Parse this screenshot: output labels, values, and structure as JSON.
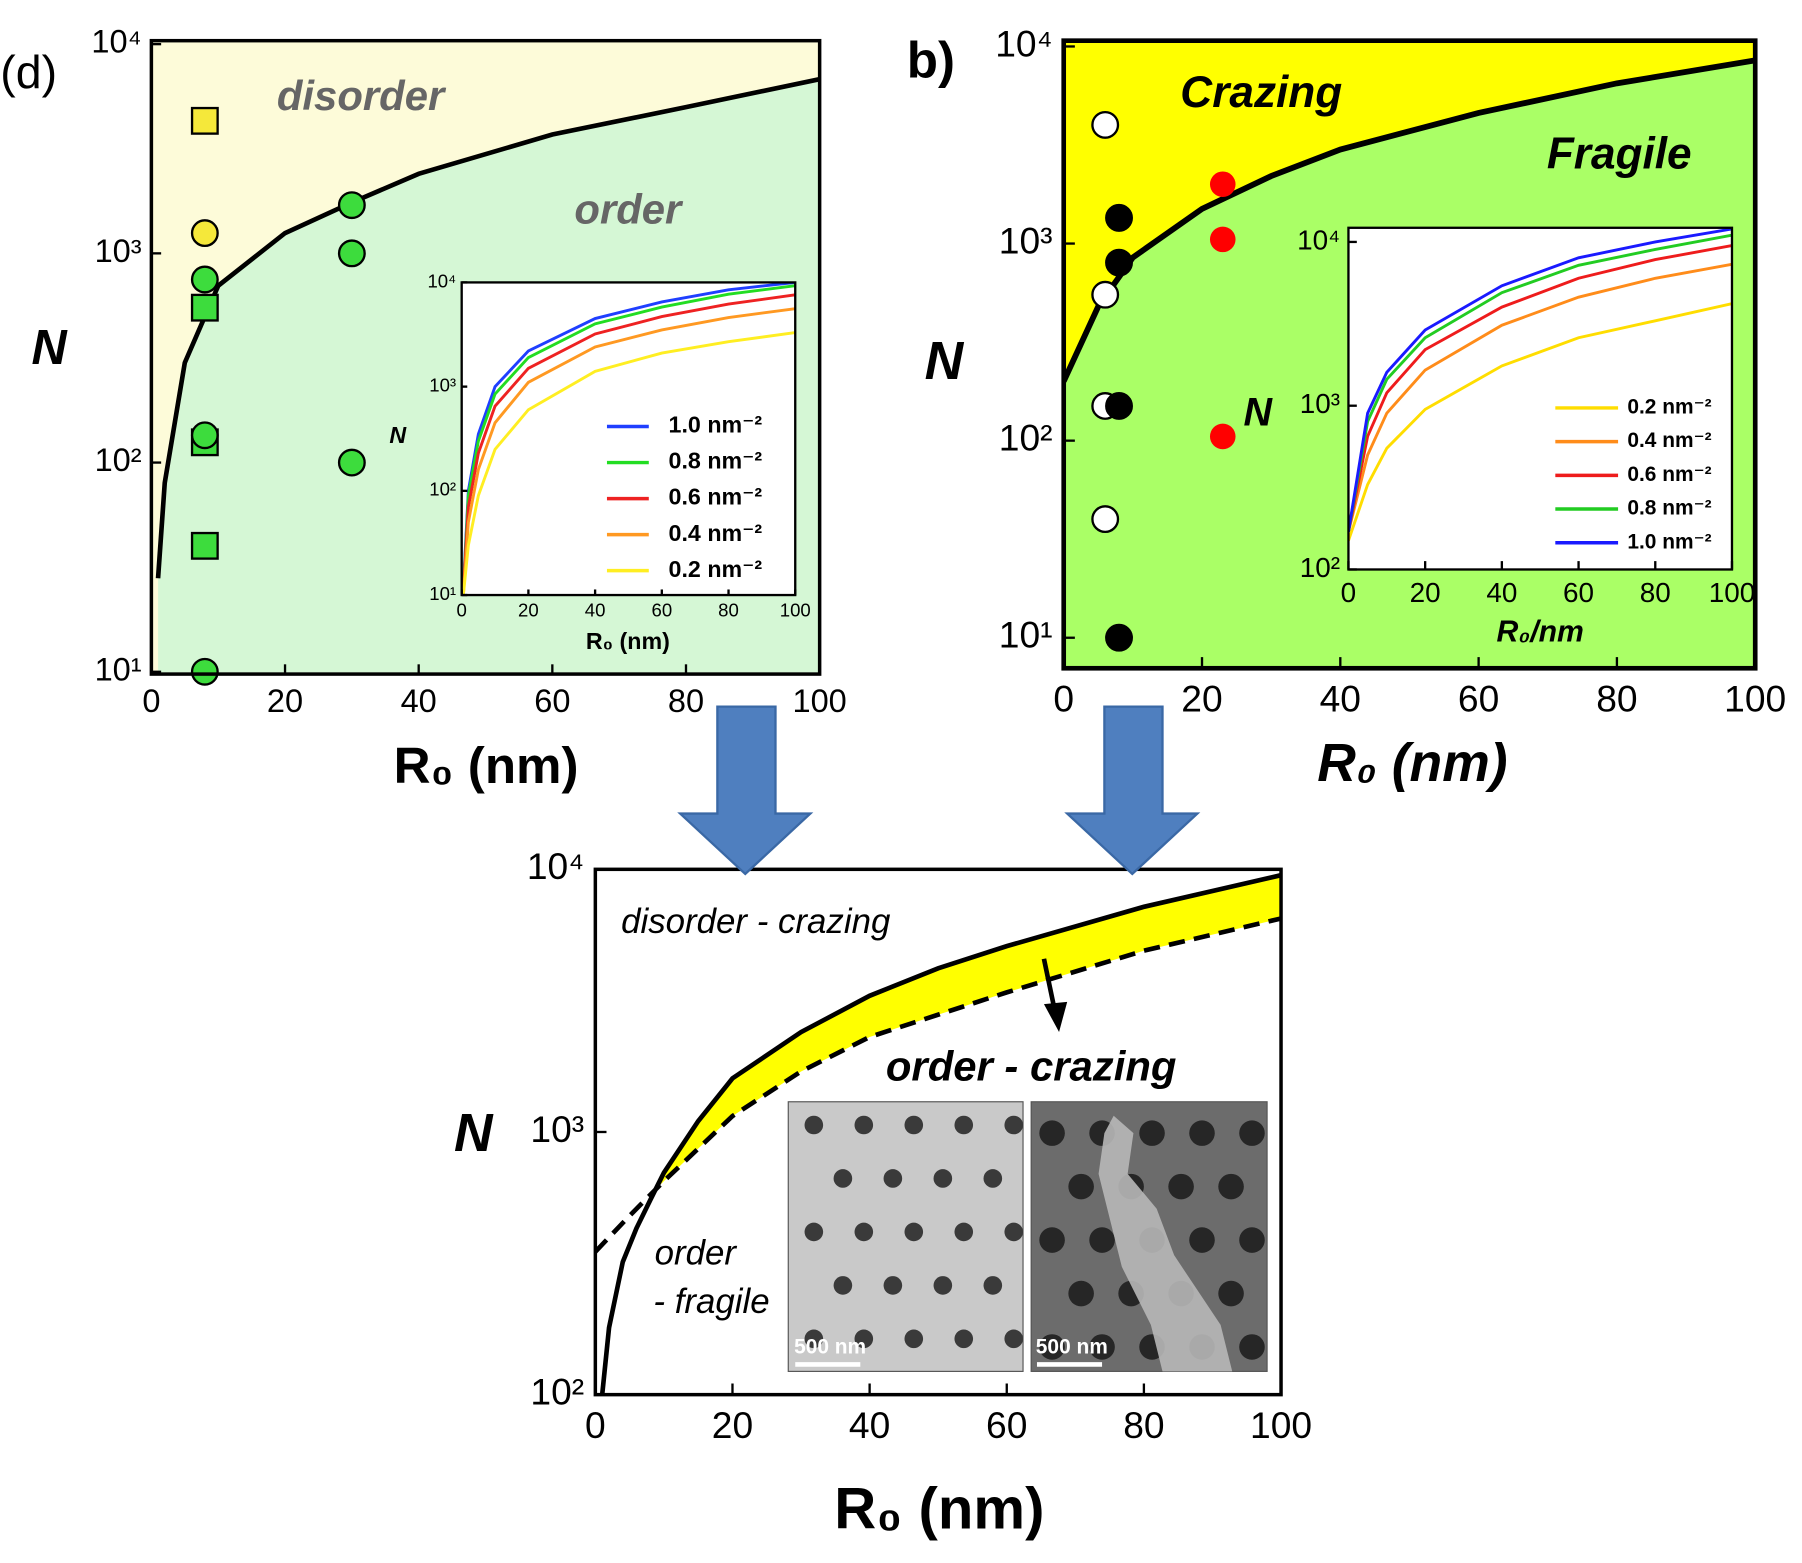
{
  "chart_data": [
    {
      "type": "scatter",
      "panel_label": "(d)",
      "annotations": [
        "disorder",
        "order"
      ],
      "xlabel": "R₀ (nm)",
      "ylabel": "N",
      "xlim": [
        0,
        100
      ],
      "ylim": [
        9.75,
        10390
      ],
      "log_y": true,
      "xticks": [
        0,
        20,
        40,
        60,
        80,
        100
      ],
      "yticks": [
        {
          "value": 10,
          "label": "10¹"
        },
        {
          "value": 100,
          "label": "10²"
        },
        {
          "value": 1000,
          "label": "10³"
        },
        {
          "value": 10000,
          "label": "10⁴"
        }
      ],
      "region_colors": [
        "#fdfbd9",
        "#d5f7d5"
      ],
      "boundary": {
        "color": "#000000",
        "x": [
          1,
          2,
          5,
          10,
          20,
          30,
          40,
          60,
          80,
          100
        ],
        "values": [
          28,
          80,
          300,
          700,
          1250,
          1750,
          2400,
          3700,
          5000,
          6800
        ]
      },
      "series": [
        {
          "marker": "square",
          "color": "#f5e83a",
          "edgecolor": "#000000",
          "x": [
            8
          ],
          "values": [
            4300
          ]
        },
        {
          "marker": "square",
          "color": "#3ddc3d",
          "edgecolor": "#000000",
          "x": [
            8,
            8,
            8
          ],
          "values": [
            550,
            125,
            40
          ]
        },
        {
          "marker": "circle",
          "color": "#f5e83a",
          "edgecolor": "#000000",
          "x": [
            8
          ],
          "values": [
            1250
          ]
        },
        {
          "marker": "circle",
          "color": "#3ddc3d",
          "edgecolor": "#000000",
          "x": [
            8,
            8,
            8,
            30,
            30,
            30
          ],
          "values": [
            750,
            135,
            10,
            1700,
            1000,
            100
          ]
        }
      ]
    },
    {
      "type": "line",
      "xlabel": "R₀ (nm)",
      "ylabel": "N",
      "xlim": [
        0,
        100
      ],
      "ylim": [
        10,
        10000
      ],
      "log_y": true,
      "xticks": [
        0,
        20,
        40,
        60,
        80,
        100
      ],
      "yticks": [
        {
          "value": 10,
          "label": "10¹"
        },
        {
          "value": 100,
          "label": "10²"
        },
        {
          "value": 1000,
          "label": "10³"
        },
        {
          "value": 10000,
          "label": "10⁴"
        }
      ],
      "series": [
        {
          "name": "1.0 nm⁻²",
          "color": "#1f3fff",
          "x": [
            0.5,
            2,
            5,
            10,
            20,
            40,
            60,
            80,
            100
          ],
          "values": [
            12,
            100,
            350,
            1000,
            2200,
            4500,
            6500,
            8500,
            10000
          ]
        },
        {
          "name": "0.8 nm⁻²",
          "color": "#22dd22",
          "x": [
            0.5,
            2,
            5,
            10,
            20,
            40,
            60,
            80,
            100
          ],
          "values": [
            11,
            90,
            300,
            850,
            1900,
            4000,
            5800,
            7700,
            9300
          ]
        },
        {
          "name": "0.6 nm⁻²",
          "color": "#ee2222",
          "x": [
            0.5,
            2,
            5,
            10,
            20,
            40,
            60,
            80,
            100
          ],
          "values": [
            11,
            70,
            230,
            650,
            1500,
            3200,
            4700,
            6200,
            7600
          ]
        },
        {
          "name": "0.4 nm⁻²",
          "color": "#ff9922",
          "x": [
            0.5,
            2,
            5,
            10,
            20,
            40,
            60,
            80,
            100
          ],
          "values": [
            10,
            50,
            160,
            450,
            1100,
            2400,
            3500,
            4600,
            5600
          ]
        },
        {
          "name": "0.2 nm⁻²",
          "color": "#ffee22",
          "x": [
            0.5,
            2,
            5,
            10,
            20,
            40,
            60,
            80,
            100
          ],
          "values": [
            10,
            30,
            90,
            250,
            600,
            1400,
            2100,
            2700,
            3300
          ]
        }
      ]
    },
    {
      "type": "scatter",
      "panel_label": "b)",
      "annotations": [
        "Crazing",
        "Fragile"
      ],
      "xlabel": "R₀ (nm)",
      "ylabel": "N",
      "xlim": [
        0,
        100
      ],
      "ylim": [
        7,
        10700
      ],
      "log_y": true,
      "xticks": [
        0,
        20,
        40,
        60,
        80,
        100
      ],
      "yticks": [
        {
          "value": 10,
          "label": "10¹"
        },
        {
          "value": 100,
          "label": "10²"
        },
        {
          "value": 1000,
          "label": "10³"
        },
        {
          "value": 10000,
          "label": "10⁴"
        }
      ],
      "region_colors": [
        "#ffff00",
        "#aaff66"
      ],
      "boundary": {
        "color": "#000000",
        "x": [
          0,
          5,
          10,
          20,
          30,
          40,
          60,
          80,
          100
        ],
        "values": [
          200,
          480,
          850,
          1500,
          2200,
          3000,
          4600,
          6500,
          8500
        ]
      },
      "series": [
        {
          "marker": "circle",
          "color": "#ffffff",
          "edgecolor": "#000000",
          "x": [
            6,
            6,
            6,
            6
          ],
          "values": [
            4000,
            550,
            150,
            40
          ]
        },
        {
          "marker": "circle",
          "color": "#000000",
          "edgecolor": "#000000",
          "x": [
            8,
            8,
            8,
            8
          ],
          "values": [
            1350,
            800,
            150,
            10
          ]
        },
        {
          "marker": "circle",
          "color": "#ff0000",
          "x": [
            23,
            23,
            23
          ],
          "values": [
            2000,
            1050,
            105
          ]
        }
      ]
    },
    {
      "type": "line",
      "xlabel": "R₀/nm",
      "ylabel": "N",
      "xlim": [
        0,
        100
      ],
      "ylim": [
        100,
        12200
      ],
      "log_y": true,
      "xticks": [
        0,
        20,
        40,
        60,
        80,
        100
      ],
      "yticks": [
        {
          "value": 100,
          "label": "10²"
        },
        {
          "value": 1000,
          "label": "10³"
        },
        {
          "value": 10000,
          "label": "10⁴"
        }
      ],
      "series": [
        {
          "name": "0.2 nm⁻²",
          "color": "#ffdd00",
          "x": [
            0,
            5,
            10,
            20,
            40,
            60,
            80,
            100
          ],
          "values": [
            150,
            330,
            550,
            950,
            1750,
            2600,
            3300,
            4200
          ]
        },
        {
          "name": "0.4 nm⁻²",
          "color": "#ff8c1a",
          "x": [
            0,
            5,
            10,
            20,
            40,
            60,
            80,
            100
          ],
          "values": [
            170,
            500,
            900,
            1650,
            3100,
            4600,
            6000,
            7300
          ]
        },
        {
          "name": "0.6 nm⁻²",
          "color": "#ee1c1c",
          "x": [
            0,
            5,
            10,
            20,
            40,
            60,
            80,
            100
          ],
          "values": [
            170,
            650,
            1200,
            2200,
            4000,
            6000,
            7800,
            9500
          ]
        },
        {
          "name": "0.8 nm⁻²",
          "color": "#22cc22",
          "x": [
            0,
            5,
            10,
            20,
            40,
            60,
            80,
            100
          ],
          "values": [
            170,
            800,
            1450,
            2600,
            4900,
            7200,
            9000,
            11000
          ]
        },
        {
          "name": "1.0 nm⁻²",
          "color": "#1a1aff",
          "x": [
            0,
            5,
            10,
            20,
            40,
            60,
            80,
            100
          ],
          "values": [
            170,
            900,
            1600,
            2900,
            5400,
            8000,
            10000,
            12000
          ]
        }
      ]
    },
    {
      "type": "line",
      "annotations": [
        "disorder - crazing",
        "order - crazing",
        "order",
        "- fragile",
        "500 nm",
        "500 nm"
      ],
      "xlabel": "R₀ (nm)",
      "ylabel": "N",
      "xlim": [
        0,
        100
      ],
      "ylim": [
        100,
        10000
      ],
      "log_y": true,
      "xticks": [
        0,
        20,
        40,
        60,
        80,
        100
      ],
      "yticks": [
        {
          "value": 100,
          "label": "10²"
        },
        {
          "value": 1000,
          "label": "10³"
        },
        {
          "value": 10000,
          "label": "10⁴"
        }
      ],
      "fill_between_color": "#ffff00",
      "series": [
        {
          "color": "#000000",
          "dash": false,
          "x": [
            1,
            2,
            4,
            6,
            8,
            10,
            15,
            20,
            30,
            40,
            50,
            60,
            80,
            100
          ],
          "values": [
            100,
            180,
            320,
            430,
            550,
            700,
            1100,
            1600,
            2400,
            3300,
            4200,
            5100,
            7200,
            9500
          ]
        },
        {
          "color": "#000000",
          "dash": true,
          "x": [
            0,
            5,
            10,
            20,
            30,
            40,
            60,
            80,
            100
          ],
          "values": [
            350,
            480,
            650,
            1150,
            1700,
            2300,
            3400,
            4900,
            6500
          ]
        }
      ]
    }
  ]
}
